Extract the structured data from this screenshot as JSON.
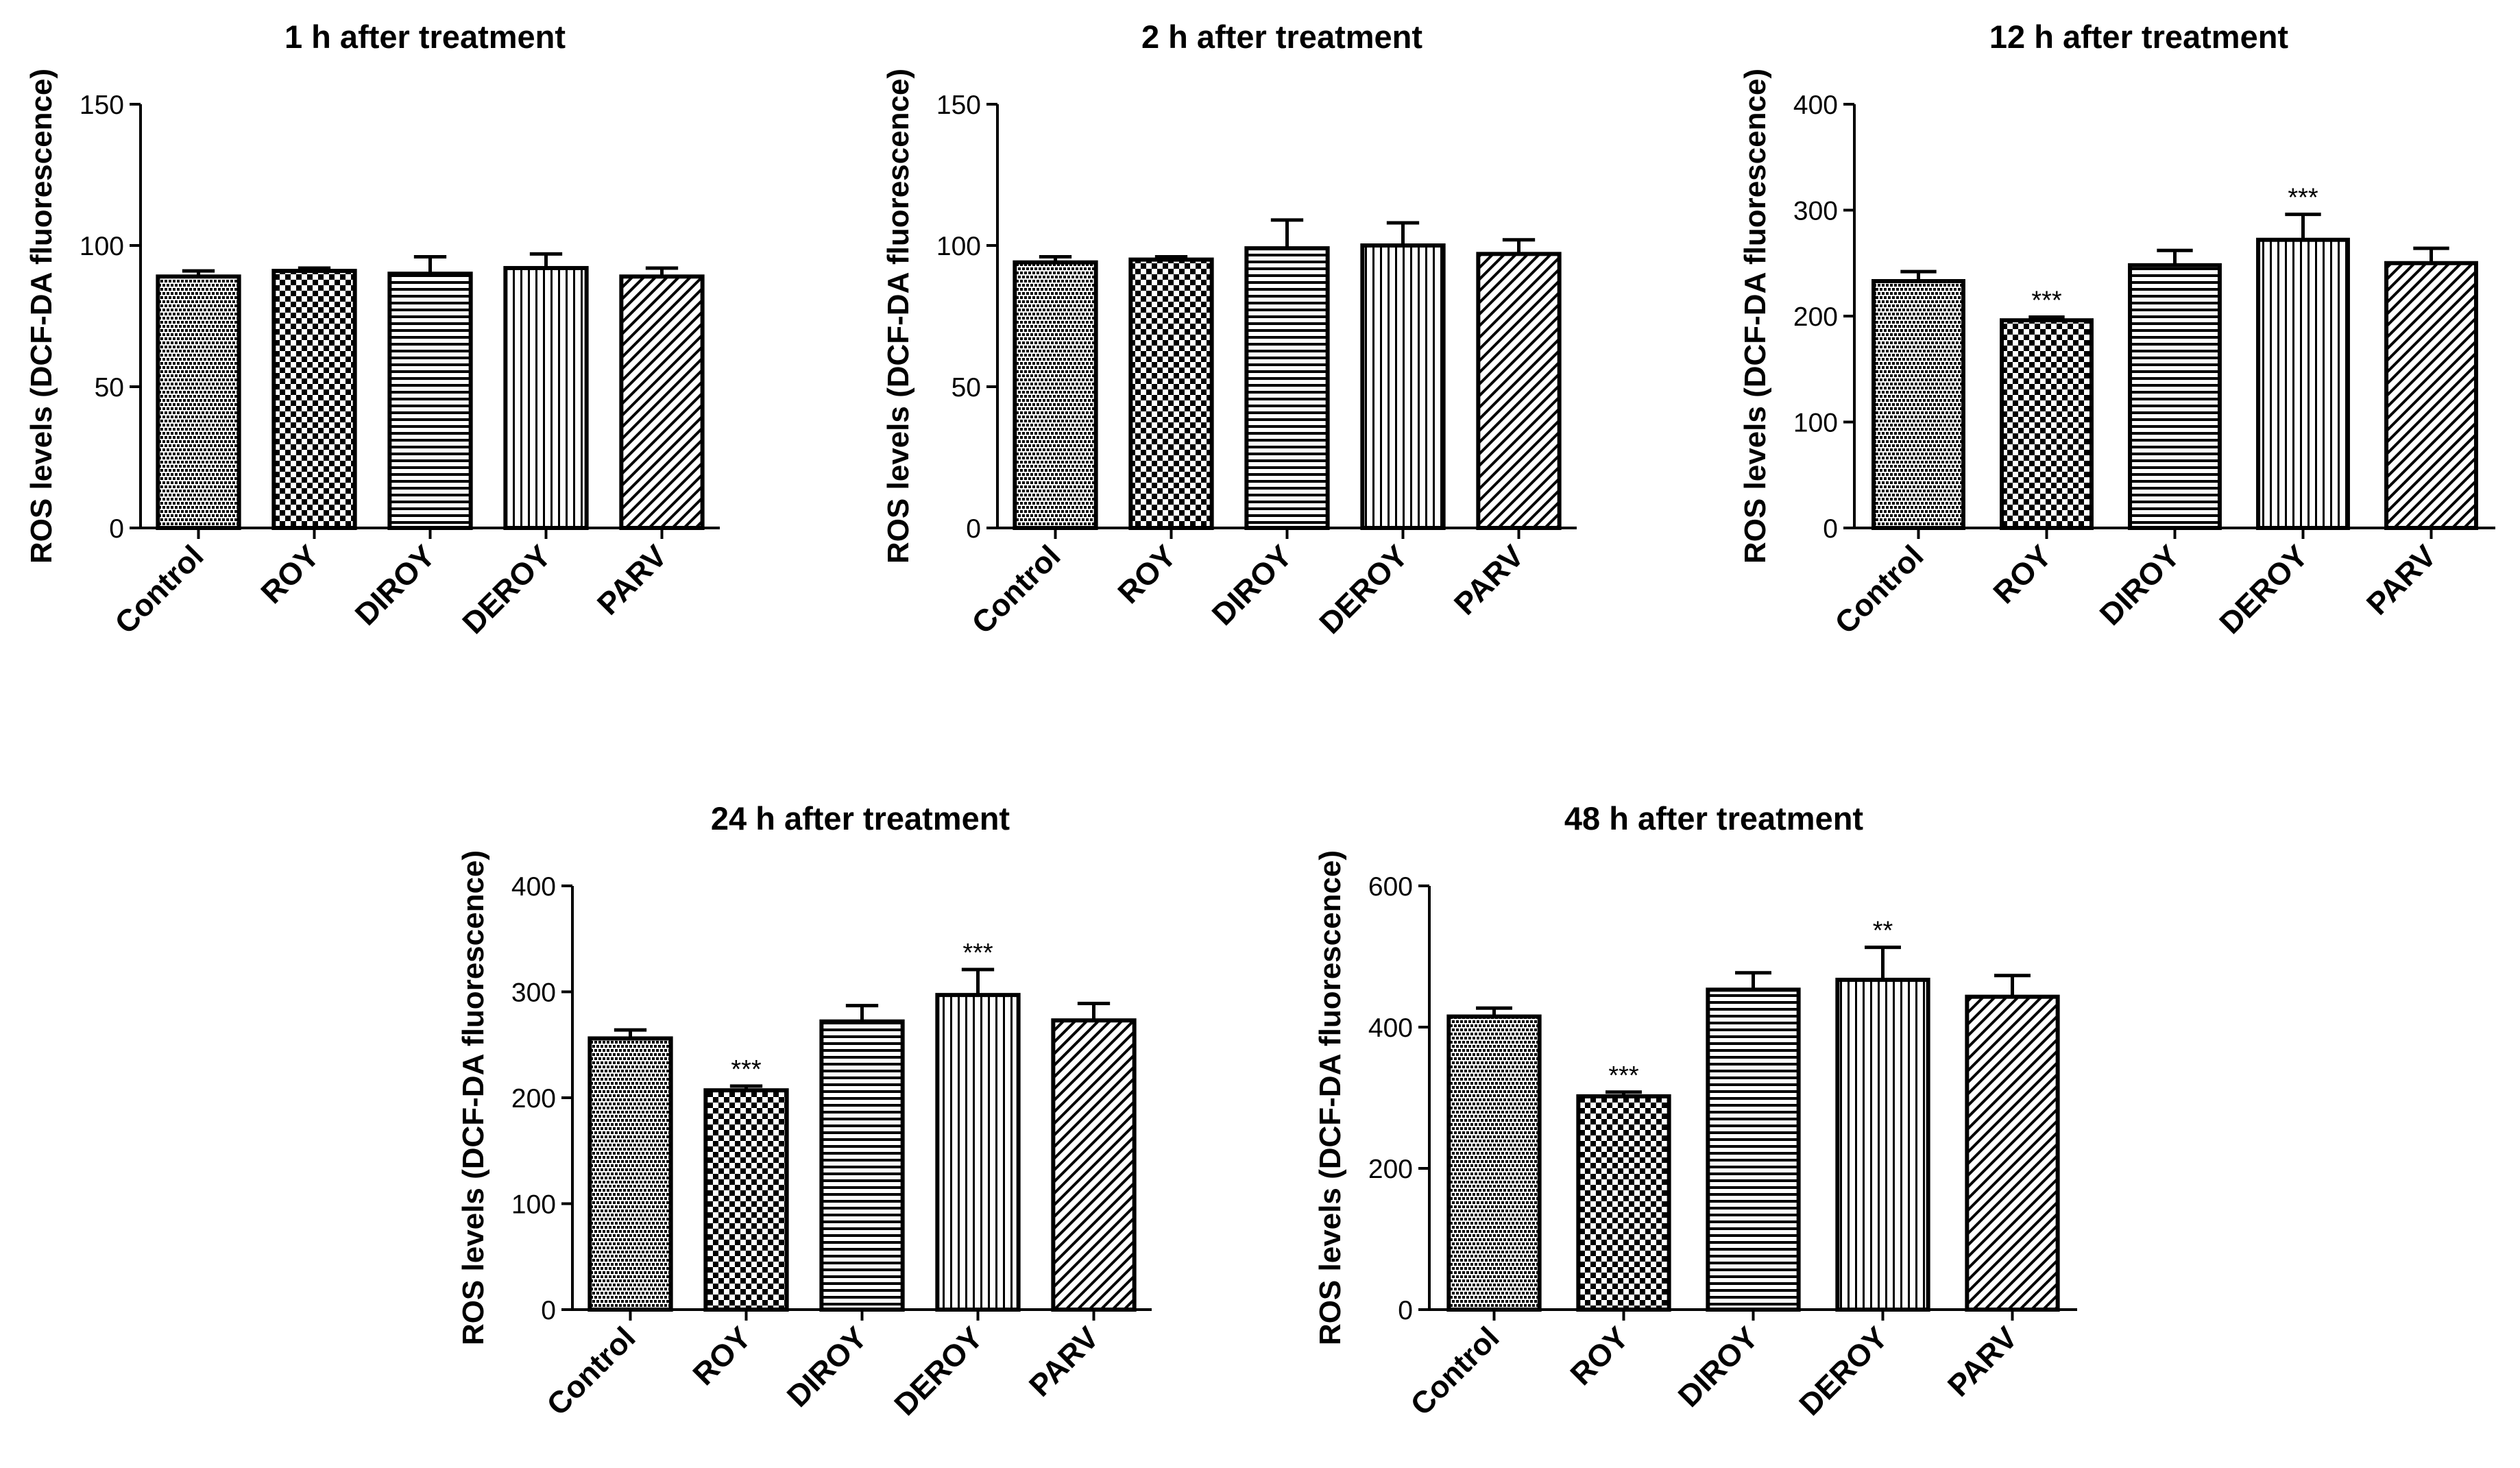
{
  "chart_data": [
    {
      "type": "bar",
      "title": "1 h after treatment",
      "xlabel": "",
      "ylabel": "ROS levels (DCF-DA fluorescence)",
      "categories": [
        "Control",
        "ROY",
        "DIROY",
        "DEROY",
        "PARV"
      ],
      "values": [
        89,
        91,
        90,
        92,
        89
      ],
      "errors": [
        2,
        1,
        6,
        5,
        3
      ],
      "significance": [
        "",
        "",
        "",
        "",
        ""
      ],
      "yticks": [
        0,
        50,
        100,
        150
      ],
      "ylim": [
        0,
        150
      ]
    },
    {
      "type": "bar",
      "title": "2 h after treatment",
      "xlabel": "",
      "ylabel": "ROS levels (DCF-DA fluorescence)",
      "categories": [
        "Control",
        "ROY",
        "DIROY",
        "DEROY",
        "PARV"
      ],
      "values": [
        94,
        95,
        99,
        100,
        97
      ],
      "errors": [
        2,
        1,
        10,
        8,
        5
      ],
      "significance": [
        "",
        "",
        "",
        "",
        ""
      ],
      "yticks": [
        0,
        50,
        100,
        150
      ],
      "ylim": [
        0,
        150
      ]
    },
    {
      "type": "bar",
      "title": "12 h after treatment",
      "xlabel": "",
      "ylabel": "ROS levels (DCF-DA fluorescence)",
      "categories": [
        "Control",
        "ROY",
        "DIROY",
        "DEROY",
        "PARV"
      ],
      "values": [
        233,
        196,
        248,
        272,
        250
      ],
      "errors": [
        9,
        3,
        14,
        24,
        14
      ],
      "significance": [
        "",
        "***",
        "",
        "***",
        ""
      ],
      "yticks": [
        0,
        100,
        200,
        300,
        400
      ],
      "ylim": [
        0,
        400
      ]
    },
    {
      "type": "bar",
      "title": "24 h after treatment",
      "xlabel": "",
      "ylabel": "ROS levels (DCF-DA fluorescence)",
      "categories": [
        "Control",
        "ROY",
        "DIROY",
        "DEROY",
        "PARV"
      ],
      "values": [
        256,
        207,
        272,
        297,
        273
      ],
      "errors": [
        8,
        4,
        15,
        24,
        16
      ],
      "significance": [
        "",
        "***",
        "",
        "***",
        ""
      ],
      "yticks": [
        0,
        100,
        200,
        300,
        400
      ],
      "ylim": [
        0,
        400
      ]
    },
    {
      "type": "bar",
      "title": "48 h after treatment",
      "xlabel": "",
      "ylabel": "ROS levels (DCF-DA fluorescence)",
      "categories": [
        "Control",
        "ROY",
        "DIROY",
        "DEROY",
        "PARV"
      ],
      "values": [
        415,
        302,
        453,
        467,
        443
      ],
      "errors": [
        12,
        6,
        24,
        46,
        30
      ],
      "significance": [
        "",
        "***",
        "",
        "**",
        ""
      ],
      "yticks": [
        0,
        200,
        400,
        600
      ],
      "ylim": [
        0,
        600
      ]
    }
  ]
}
